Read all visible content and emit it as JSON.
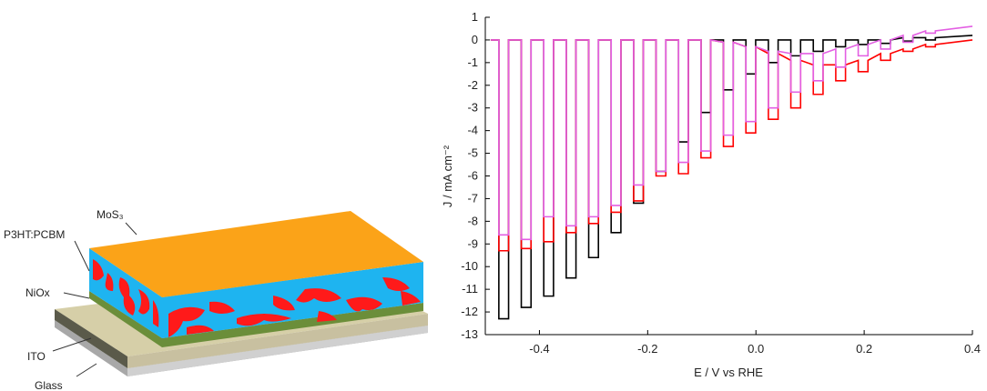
{
  "diagram": {
    "labels": [
      "MoS₃",
      "P3HT:PCBM",
      "NiOx",
      "ITO",
      "Glass"
    ]
  },
  "chart_data": {
    "type": "line",
    "xlabel": "E / V vs RHE",
    "ylabel": "J / mA cm⁻²",
    "xlim": [
      -0.5,
      0.4
    ],
    "ylim": [
      -13,
      1
    ],
    "xticks": [
      -0.4,
      -0.2,
      {
        "value": 0,
        "label": "0.0"
      },
      0.2,
      0.4
    ],
    "yticks": [
      -13,
      -12,
      -11,
      -10,
      -9,
      -8,
      -7,
      -6,
      -5,
      -4,
      -3,
      -2,
      -1,
      0,
      1
    ],
    "x": [
      -0.49,
      -0.475,
      -0.475,
      -0.457,
      -0.457,
      -0.4335,
      -0.4335,
      -0.4155,
      -0.4155,
      -0.392,
      -0.392,
      -0.374,
      -0.374,
      -0.3505,
      -0.3505,
      -0.3325,
      -0.3325,
      -0.309,
      -0.309,
      -0.291,
      -0.291,
      -0.2675,
      -0.2675,
      -0.2495,
      -0.2495,
      -0.226,
      -0.226,
      -0.208,
      -0.208,
      -0.1845,
      -0.1845,
      -0.1665,
      -0.1665,
      -0.143,
      -0.143,
      -0.125,
      -0.125,
      -0.1015,
      -0.1015,
      -0.0835,
      -0.0835,
      -0.06,
      -0.06,
      -0.042,
      -0.042,
      -0.0185,
      -0.0185,
      -0.0005,
      -0.0005,
      0.023,
      0.023,
      0.041,
      0.041,
      0.0645,
      0.0645,
      0.0825,
      0.0825,
      0.106,
      0.106,
      0.124,
      0.124,
      0.1475,
      0.1475,
      0.1655,
      0.1655,
      0.189,
      0.189,
      0.207,
      0.207,
      0.2305,
      0.2305,
      0.2485,
      0.2485,
      0.272,
      0.272,
      0.29,
      0.29,
      0.3135,
      0.3135,
      0.3315,
      0.3315,
      0.4
    ],
    "series": [
      {
        "color": "#000000",
        "values": [
          0,
          0,
          -12.3,
          -12.3,
          0,
          0,
          -11.8,
          -11.8,
          0,
          0,
          -11.3,
          -11.3,
          0,
          0,
          -10.5,
          -10.5,
          0,
          0,
          -9.6,
          -9.6,
          0,
          0,
          -8.5,
          -8.5,
          0,
          0,
          -7.2,
          -7.2,
          0,
          0,
          -5.8,
          -5.8,
          0,
          0,
          -4.5,
          -4.5,
          0,
          0,
          -3.2,
          -3.2,
          0,
          0,
          -2.2,
          -2.2,
          0,
          0,
          -1.5,
          -1.5,
          0,
          0,
          -1,
          -1,
          0,
          0,
          -0.7,
          -0.7,
          0,
          0,
          -0.5,
          -0.5,
          0,
          0,
          -0.3,
          -0.3,
          0,
          0,
          -0.2,
          -0.2,
          0,
          0,
          -0.15,
          -0.15,
          0,
          0.1,
          -0.05,
          -0.05,
          0.1,
          0.1,
          0,
          0,
          0.1,
          0.2
        ]
      },
      {
        "color": "#ff0000",
        "values": [
          0,
          0,
          -9.3,
          -9.3,
          0,
          0,
          -9.2,
          -9.2,
          0,
          0,
          -8.9,
          -8.9,
          0,
          0,
          -8.5,
          -8.5,
          0,
          0,
          -8.1,
          -8.1,
          0,
          0,
          -7.6,
          -7.6,
          0,
          0,
          -7.1,
          -7.1,
          0,
          0,
          -6,
          -6,
          0,
          0,
          -5.9,
          -5.9,
          0,
          0,
          -5.2,
          -5.2,
          0,
          -0.1,
          -4.7,
          -4.7,
          -0.1,
          -0.3,
          -4.1,
          -4.1,
          -0.3,
          -0.6,
          -3.5,
          -3.5,
          -0.6,
          -0.9,
          -3,
          -3,
          -0.9,
          -1.1,
          -2.4,
          -2.4,
          -1.1,
          -1.1,
          -1.8,
          -1.8,
          -1.1,
          -0.9,
          -1.4,
          -1.4,
          -0.9,
          -0.6,
          -0.9,
          -0.9,
          -0.6,
          -0.4,
          -0.5,
          -0.5,
          -0.4,
          -0.2,
          -0.3,
          -0.3,
          -0.2,
          0
        ]
      },
      {
        "color": "#e35fe3",
        "values": [
          0,
          0,
          -8.6,
          -8.6,
          0,
          0,
          -8.8,
          -8.8,
          0,
          0,
          -7.8,
          -7.8,
          0,
          0,
          -8.2,
          -8.2,
          0,
          0,
          -7.8,
          -7.8,
          0,
          0,
          -7.3,
          -7.3,
          0,
          0,
          -6.4,
          -6.4,
          0,
          0,
          -5.8,
          -5.8,
          0,
          0,
          -5.4,
          -5.4,
          0,
          0,
          -4.9,
          -4.9,
          0,
          -0.1,
          -4.2,
          -4.2,
          -0.1,
          -0.3,
          -3.6,
          -3.6,
          -0.3,
          -0.5,
          -3,
          -3,
          -0.5,
          -0.6,
          -2.3,
          -2.3,
          -0.6,
          -0.6,
          -1.8,
          -1.8,
          -0.6,
          -0.4,
          -1.2,
          -1.2,
          -0.4,
          -0.2,
          -0.7,
          -0.7,
          -0.2,
          0,
          -0.4,
          -0.4,
          0,
          0.2,
          -0.1,
          -0.1,
          0.2,
          0.4,
          0.3,
          0.3,
          0.4,
          0.6
        ]
      }
    ]
  }
}
